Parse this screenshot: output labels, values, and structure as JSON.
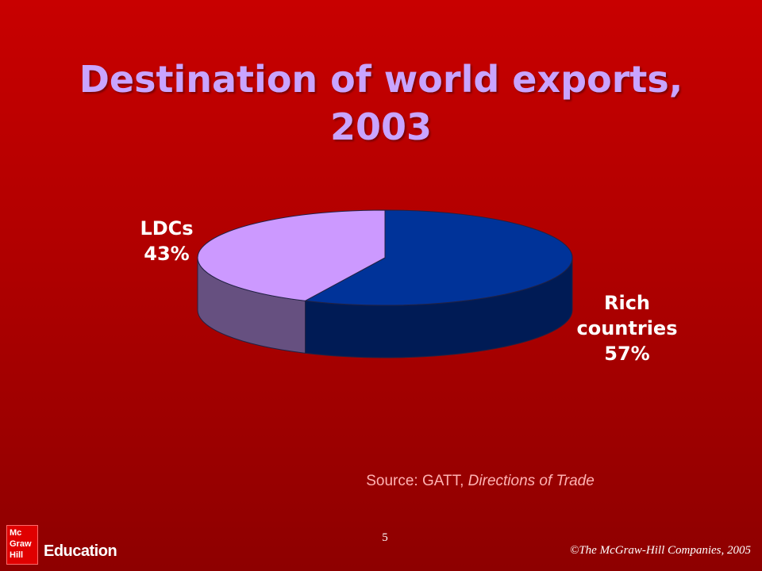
{
  "slide": {
    "title_line1": "Destination of world exports,",
    "title_line2": "2003",
    "source_prefix": "Source: GATT, ",
    "source_italic": "Directions of Trade",
    "page_number": "5",
    "copyright": "©The McGraw-Hill Companies, 2005",
    "logo": {
      "line1": "Mc",
      "line2": "Graw",
      "line3": "Hill",
      "text": "Education"
    }
  },
  "chart_data": {
    "type": "pie",
    "title": "Destination of world exports, 2003",
    "slices": [
      {
        "name_lines": [
          "Rich",
          "countries"
        ],
        "value": 57,
        "value_label": "57%",
        "top_color": "#003399",
        "side_color": "#001b55"
      },
      {
        "name_lines": [
          "LDCs"
        ],
        "value": 43,
        "value_label": "43%",
        "top_color": "#cc99ff",
        "side_color": "#665080"
      }
    ]
  }
}
